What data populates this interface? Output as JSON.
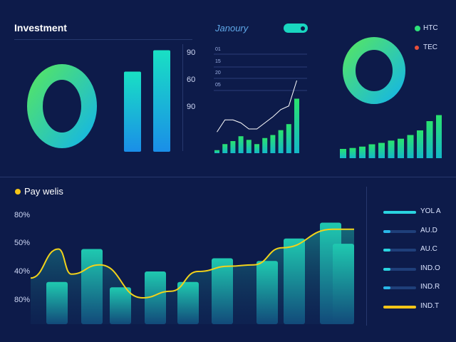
{
  "investment": {
    "title": "Investment",
    "axis_labels": [
      "90",
      "60",
      "90"
    ]
  },
  "january": {
    "title": "Janoury",
    "axis_labels": [
      "01",
      "15",
      "20",
      "05"
    ]
  },
  "legend_top": {
    "items": [
      {
        "label": "HTC",
        "color": "#2ee07a"
      },
      {
        "label": "TEC",
        "color": "#e8503a"
      }
    ]
  },
  "pay": {
    "title": "Pay welis",
    "dot_color": "#f5c518",
    "axis_labels": [
      "80%",
      "50%",
      "40%",
      "80%"
    ]
  },
  "legend_bottom": {
    "items": [
      {
        "label": "YOL A",
        "color": "#2ad4e0"
      },
      {
        "label": "AU.D",
        "color": "#2ab7e8"
      },
      {
        "label": "AU.C",
        "color": "#2ad4e0"
      },
      {
        "label": "IND.O",
        "color": "#2ad4e0"
      },
      {
        "label": "IND.R",
        "color": "#2ab7e8"
      },
      {
        "label": "IND.T",
        "color": "#f5c518"
      }
    ]
  },
  "chart_data": [
    {
      "type": "bar",
      "title": "Investment",
      "values": [
        0.75,
        0.95
      ],
      "ring": "donut"
    },
    {
      "type": "bar",
      "title": "Janoury",
      "values": [
        0.05,
        0.15,
        0.2,
        0.28,
        0.22,
        0.15,
        0.25,
        0.3,
        0.38,
        0.48,
        0.9
      ],
      "line": [
        0.35,
        0.55,
        0.55,
        0.5,
        0.4,
        0.4,
        0.5,
        0.6,
        0.72,
        0.78,
        1.2
      ]
    },
    {
      "type": "bar",
      "title": "HTC / TEC",
      "values": [
        0.2,
        0.22,
        0.25,
        0.3,
        0.33,
        0.38,
        0.42,
        0.5,
        0.6,
        0.8,
        0.93
      ]
    },
    {
      "type": "bar",
      "title": "Pay welis",
      "values": [
        0.32,
        0.57,
        0.28,
        0.4,
        0.32,
        0.5,
        0.48,
        0.65,
        0.77,
        0.61
      ],
      "line": [
        0.35,
        0.57,
        0.38,
        0.45,
        0.2,
        0.25,
        0.4,
        0.44,
        0.45,
        0.58,
        0.72
      ]
    }
  ]
}
